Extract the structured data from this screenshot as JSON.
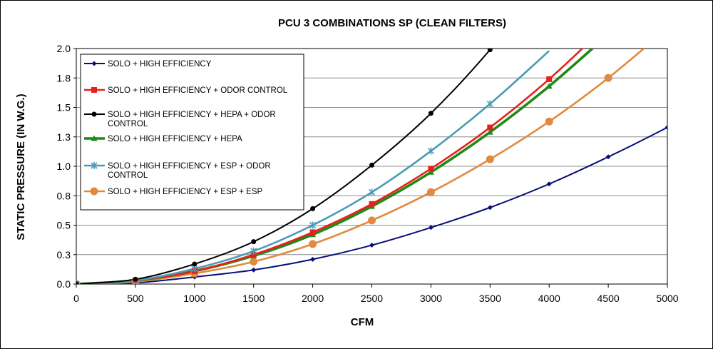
{
  "chart_data": {
    "type": "line",
    "title": "PCU 3 COMBINATIONS SP (CLEAN FILTERS)",
    "xlabel": "CFM",
    "ylabel": "STATIC PRESSURE (IN W.G.)",
    "xlim": [
      0,
      5000
    ],
    "ylim": [
      0,
      2.0
    ],
    "x_ticks": [
      0,
      500,
      1000,
      1500,
      2000,
      2500,
      3000,
      3500,
      4000,
      4500,
      5000
    ],
    "x_tick_labels": [
      "0",
      "500",
      "1000",
      "1500",
      "2000",
      "2500",
      "3000",
      "3500",
      "4000",
      "4500",
      "5000"
    ],
    "y_ticks": [
      0,
      0.25,
      0.5,
      0.75,
      1.0,
      1.25,
      1.5,
      1.75,
      2.0
    ],
    "y_tick_labels": [
      "0.0",
      "0.3",
      "0.5",
      "0.8",
      "1.0",
      "1.3",
      "1.5",
      "1.8",
      "2.0"
    ],
    "grid": "horizontal",
    "legend_position": "top-left",
    "series": [
      {
        "name": "SOLO + HIGH EFFICIENCY",
        "color": "#0a0f78",
        "marker": "diamond",
        "x": [
          0,
          500,
          1000,
          1500,
          2000,
          2500,
          3000,
          3500,
          4000,
          4500,
          5000
        ],
        "y": [
          0,
          0.01,
          0.06,
          0.12,
          0.21,
          0.33,
          0.48,
          0.65,
          0.85,
          1.08,
          1.33
        ]
      },
      {
        "name": "SOLO + HIGH EFFICIENCY + ODOR CONTROL",
        "color": "#e8201c",
        "marker": "square",
        "x": [
          0,
          500,
          1000,
          1500,
          2000,
          2500,
          3000,
          3500,
          4000
        ],
        "y": [
          0,
          0.03,
          0.11,
          0.25,
          0.44,
          0.68,
          0.98,
          1.33,
          1.74
        ]
      },
      {
        "name": "SOLO + HIGH EFFICIENCY + HEPA + ODOR CONTROL",
        "color": "#000000",
        "marker": "circle",
        "x": [
          0,
          500,
          1000,
          1500,
          2000,
          2500,
          3000,
          3500
        ],
        "y": [
          0,
          0.04,
          0.17,
          0.36,
          0.64,
          1.01,
          1.45,
          1.99
        ]
      },
      {
        "name": "SOLO + HIGH EFFICIENCY + HEPA",
        "color": "#1e8a16",
        "marker": "triangle",
        "x": [
          0,
          500,
          1000,
          1500,
          2000,
          2500,
          3000,
          3500,
          4000
        ],
        "y": [
          0,
          0.03,
          0.11,
          0.24,
          0.42,
          0.66,
          0.95,
          1.29,
          1.68
        ]
      },
      {
        "name": "SOLO + HIGH EFFICIENCY + ESP + ODOR CONTROL",
        "color": "#4a9bb5",
        "marker": "asterisk",
        "x": [
          0,
          500,
          1000,
          1500,
          2000,
          2500,
          3000,
          3500
        ],
        "y": [
          0,
          0.03,
          0.13,
          0.28,
          0.5,
          0.78,
          1.13,
          1.53
        ]
      },
      {
        "name": "SOLO + HIGH EFFICIENCY + ESP + ESP",
        "color": "#e2893f",
        "marker": "circle-large",
        "x": [
          0,
          500,
          1000,
          1500,
          2000,
          2500,
          3000,
          3500,
          4000,
          4500
        ],
        "y": [
          0,
          0.02,
          0.09,
          0.19,
          0.34,
          0.54,
          0.78,
          1.06,
          1.38,
          1.75
        ]
      }
    ]
  }
}
